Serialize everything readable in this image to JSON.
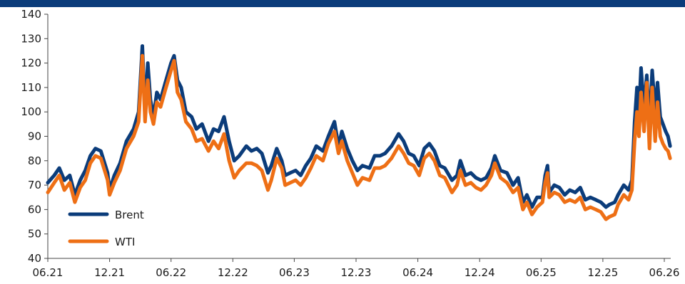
{
  "header": {
    "bar_color": "#0b3c7a"
  },
  "chart_data": {
    "type": "line",
    "title": "",
    "xlabel": "",
    "ylabel": "",
    "ylim": [
      40,
      140
    ],
    "yticks": [
      40,
      50,
      60,
      70,
      80,
      90,
      100,
      110,
      120,
      130,
      140
    ],
    "xlim": [
      "2021-06-01",
      "2026-06-20"
    ],
    "xticks": [
      {
        "label": "06.21",
        "date": "2021-06-01"
      },
      {
        "label": "12.21",
        "date": "2021-12-01"
      },
      {
        "label": "06.22",
        "date": "2022-06-01"
      },
      {
        "label": "12.22",
        "date": "2022-12-01"
      },
      {
        "label": "06.23",
        "date": "2023-06-01"
      },
      {
        "label": "12.23",
        "date": "2023-12-01"
      },
      {
        "label": "06.24",
        "date": "2024-06-01"
      },
      {
        "label": "12.24",
        "date": "2024-12-01"
      },
      {
        "label": "06.25",
        "date": "2025-06-01"
      },
      {
        "label": "12.25",
        "date": "2025-12-01"
      },
      {
        "label": "06.26",
        "date": "2026-06-01"
      }
    ],
    "grid": false,
    "legend_position": "bottom-left",
    "series": [
      {
        "name": "Brent",
        "color": "#0b3c7a",
        "points": [
          [
            "2021-06-01",
            71
          ],
          [
            "2021-06-20",
            74
          ],
          [
            "2021-07-05",
            77
          ],
          [
            "2021-07-20",
            72
          ],
          [
            "2021-08-05",
            74
          ],
          [
            "2021-08-20",
            66
          ],
          [
            "2021-09-05",
            72
          ],
          [
            "2021-09-20",
            76
          ],
          [
            "2021-10-05",
            82
          ],
          [
            "2021-10-20",
            85
          ],
          [
            "2021-11-05",
            84
          ],
          [
            "2021-11-25",
            75
          ],
          [
            "2021-12-01",
            68
          ],
          [
            "2021-12-15",
            74
          ],
          [
            "2022-01-01",
            79
          ],
          [
            "2022-01-20",
            88
          ],
          [
            "2022-02-10",
            93
          ],
          [
            "2022-02-25",
            100
          ],
          [
            "2022-03-08",
            127
          ],
          [
            "2022-03-16",
            99
          ],
          [
            "2022-03-24",
            120
          ],
          [
            "2022-04-01",
            105
          ],
          [
            "2022-04-10",
            98
          ],
          [
            "2022-04-20",
            108
          ],
          [
            "2022-05-01",
            105
          ],
          [
            "2022-05-15",
            112
          ],
          [
            "2022-06-01",
            120
          ],
          [
            "2022-06-10",
            123
          ],
          [
            "2022-06-20",
            113
          ],
          [
            "2022-07-01",
            110
          ],
          [
            "2022-07-15",
            100
          ],
          [
            "2022-08-01",
            98
          ],
          [
            "2022-08-15",
            93
          ],
          [
            "2022-09-01",
            95
          ],
          [
            "2022-09-20",
            88
          ],
          [
            "2022-10-05",
            93
          ],
          [
            "2022-10-20",
            92
          ],
          [
            "2022-11-05",
            98
          ],
          [
            "2022-11-20",
            88
          ],
          [
            "2022-12-05",
            80
          ],
          [
            "2022-12-20",
            82
          ],
          [
            "2023-01-10",
            86
          ],
          [
            "2023-01-25",
            84
          ],
          [
            "2023-02-10",
            85
          ],
          [
            "2023-02-25",
            83
          ],
          [
            "2023-03-15",
            75
          ],
          [
            "2023-03-25",
            78
          ],
          [
            "2023-04-10",
            85
          ],
          [
            "2023-04-25",
            80
          ],
          [
            "2023-05-05",
            74
          ],
          [
            "2023-05-20",
            75
          ],
          [
            "2023-06-05",
            76
          ],
          [
            "2023-06-20",
            74
          ],
          [
            "2023-07-05",
            78
          ],
          [
            "2023-07-20",
            81
          ],
          [
            "2023-08-05",
            86
          ],
          [
            "2023-08-25",
            84
          ],
          [
            "2023-09-10",
            90
          ],
          [
            "2023-09-28",
            96
          ],
          [
            "2023-10-10",
            86
          ],
          [
            "2023-10-20",
            92
          ],
          [
            "2023-11-05",
            85
          ],
          [
            "2023-11-20",
            80
          ],
          [
            "2023-12-05",
            76
          ],
          [
            "2023-12-20",
            78
          ],
          [
            "2024-01-10",
            77
          ],
          [
            "2024-01-25",
            82
          ],
          [
            "2024-02-10",
            82
          ],
          [
            "2024-02-25",
            83
          ],
          [
            "2024-03-15",
            86
          ],
          [
            "2024-04-05",
            91
          ],
          [
            "2024-04-20",
            88
          ],
          [
            "2024-05-05",
            83
          ],
          [
            "2024-05-20",
            82
          ],
          [
            "2024-06-05",
            78
          ],
          [
            "2024-06-20",
            85
          ],
          [
            "2024-07-05",
            87
          ],
          [
            "2024-07-20",
            84
          ],
          [
            "2024-08-05",
            78
          ],
          [
            "2024-08-20",
            77
          ],
          [
            "2024-09-10",
            72
          ],
          [
            "2024-09-25",
            74
          ],
          [
            "2024-10-05",
            80
          ],
          [
            "2024-10-20",
            74
          ],
          [
            "2024-11-05",
            75
          ],
          [
            "2024-11-20",
            73
          ],
          [
            "2024-12-05",
            72
          ],
          [
            "2024-12-20",
            73
          ],
          [
            "2025-01-05",
            77
          ],
          [
            "2025-01-15",
            82
          ],
          [
            "2025-02-01",
            76
          ],
          [
            "2025-02-20",
            75
          ],
          [
            "2025-03-10",
            70
          ],
          [
            "2025-03-25",
            73
          ],
          [
            "2025-04-08",
            63
          ],
          [
            "2025-04-20",
            66
          ],
          [
            "2025-05-05",
            61
          ],
          [
            "2025-05-20",
            65
          ],
          [
            "2025-06-05",
            65
          ],
          [
            "2025-06-13",
            74
          ],
          [
            "2025-06-20",
            78
          ],
          [
            "2025-06-25",
            67
          ],
          [
            "2025-07-10",
            70
          ],
          [
            "2025-07-25",
            69
          ],
          [
            "2025-08-10",
            66
          ],
          [
            "2025-08-25",
            68
          ],
          [
            "2025-09-10",
            67
          ],
          [
            "2025-09-25",
            69
          ],
          [
            "2025-10-10",
            64
          ],
          [
            "2025-10-25",
            65
          ],
          [
            "2025-11-10",
            64
          ],
          [
            "2025-11-25",
            63
          ],
          [
            "2025-12-10",
            61
          ],
          [
            "2025-12-20",
            62
          ],
          [
            "2026-01-05",
            63
          ],
          [
            "2026-01-15",
            66
          ],
          [
            "2026-02-01",
            70
          ],
          [
            "2026-02-15",
            68
          ],
          [
            "2026-02-25",
            72
          ],
          [
            "2026-03-05",
            96
          ],
          [
            "2026-03-12",
            110
          ],
          [
            "2026-03-18",
            100
          ],
          [
            "2026-03-24",
            118
          ],
          [
            "2026-04-02",
            101
          ],
          [
            "2026-04-10",
            115
          ],
          [
            "2026-04-18",
            94
          ],
          [
            "2026-04-26",
            117
          ],
          [
            "2026-05-05",
            100
          ],
          [
            "2026-05-12",
            112
          ],
          [
            "2026-05-20",
            98
          ],
          [
            "2026-05-28",
            95
          ],
          [
            "2026-06-05",
            92
          ],
          [
            "2026-06-12",
            90
          ],
          [
            "2026-06-18",
            86
          ]
        ]
      },
      {
        "name": "WTI",
        "color": "#ee6f15",
        "points": [
          [
            "2021-06-01",
            67
          ],
          [
            "2021-06-20",
            71
          ],
          [
            "2021-07-05",
            74
          ],
          [
            "2021-07-20",
            68
          ],
          [
            "2021-08-05",
            71
          ],
          [
            "2021-08-20",
            63
          ],
          [
            "2021-09-05",
            69
          ],
          [
            "2021-09-20",
            72
          ],
          [
            "2021-10-05",
            79
          ],
          [
            "2021-10-20",
            82
          ],
          [
            "2021-11-05",
            81
          ],
          [
            "2021-11-25",
            72
          ],
          [
            "2021-12-01",
            66
          ],
          [
            "2021-12-15",
            71
          ],
          [
            "2022-01-01",
            76
          ],
          [
            "2022-01-20",
            85
          ],
          [
            "2022-02-10",
            90
          ],
          [
            "2022-02-25",
            96
          ],
          [
            "2022-03-08",
            123
          ],
          [
            "2022-03-16",
            96
          ],
          [
            "2022-03-24",
            113
          ],
          [
            "2022-04-01",
            100
          ],
          [
            "2022-04-10",
            95
          ],
          [
            "2022-04-20",
            104
          ],
          [
            "2022-05-01",
            102
          ],
          [
            "2022-05-15",
            109
          ],
          [
            "2022-06-01",
            117
          ],
          [
            "2022-06-10",
            121
          ],
          [
            "2022-06-20",
            108
          ],
          [
            "2022-07-01",
            105
          ],
          [
            "2022-07-15",
            96
          ],
          [
            "2022-08-01",
            93
          ],
          [
            "2022-08-15",
            88
          ],
          [
            "2022-09-01",
            89
          ],
          [
            "2022-09-20",
            84
          ],
          [
            "2022-10-05",
            88
          ],
          [
            "2022-10-20",
            85
          ],
          [
            "2022-11-05",
            91
          ],
          [
            "2022-11-20",
            80
          ],
          [
            "2022-12-05",
            73
          ],
          [
            "2022-12-20",
            76
          ],
          [
            "2023-01-10",
            79
          ],
          [
            "2023-01-25",
            79
          ],
          [
            "2023-02-10",
            78
          ],
          [
            "2023-02-25",
            76
          ],
          [
            "2023-03-15",
            68
          ],
          [
            "2023-03-25",
            72
          ],
          [
            "2023-04-10",
            81
          ],
          [
            "2023-04-25",
            77
          ],
          [
            "2023-05-05",
            70
          ],
          [
            "2023-05-20",
            71
          ],
          [
            "2023-06-05",
            72
          ],
          [
            "2023-06-20",
            70
          ],
          [
            "2023-07-05",
            73
          ],
          [
            "2023-07-20",
            77
          ],
          [
            "2023-08-05",
            82
          ],
          [
            "2023-08-25",
            80
          ],
          [
            "2023-09-10",
            87
          ],
          [
            "2023-09-28",
            92
          ],
          [
            "2023-10-10",
            83
          ],
          [
            "2023-10-20",
            88
          ],
          [
            "2023-11-05",
            80
          ],
          [
            "2023-11-20",
            75
          ],
          [
            "2023-12-05",
            70
          ],
          [
            "2023-12-20",
            73
          ],
          [
            "2024-01-10",
            72
          ],
          [
            "2024-01-25",
            77
          ],
          [
            "2024-02-10",
            77
          ],
          [
            "2024-02-25",
            78
          ],
          [
            "2024-03-15",
            81
          ],
          [
            "2024-04-05",
            86
          ],
          [
            "2024-04-20",
            83
          ],
          [
            "2024-05-05",
            79
          ],
          [
            "2024-05-20",
            78
          ],
          [
            "2024-06-05",
            74
          ],
          [
            "2024-06-20",
            81
          ],
          [
            "2024-07-05",
            83
          ],
          [
            "2024-07-20",
            80
          ],
          [
            "2024-08-05",
            74
          ],
          [
            "2024-08-20",
            73
          ],
          [
            "2024-09-10",
            67
          ],
          [
            "2024-09-25",
            70
          ],
          [
            "2024-10-05",
            76
          ],
          [
            "2024-10-20",
            70
          ],
          [
            "2024-11-05",
            71
          ],
          [
            "2024-11-20",
            69
          ],
          [
            "2024-12-05",
            68
          ],
          [
            "2024-12-20",
            70
          ],
          [
            "2025-01-05",
            74
          ],
          [
            "2025-01-15",
            79
          ],
          [
            "2025-02-01",
            73
          ],
          [
            "2025-02-20",
            71
          ],
          [
            "2025-03-10",
            67
          ],
          [
            "2025-03-25",
            69
          ],
          [
            "2025-04-08",
            60
          ],
          [
            "2025-04-20",
            63
          ],
          [
            "2025-05-05",
            58
          ],
          [
            "2025-05-20",
            61
          ],
          [
            "2025-06-05",
            63
          ],
          [
            "2025-06-13",
            71
          ],
          [
            "2025-06-20",
            75
          ],
          [
            "2025-06-25",
            65
          ],
          [
            "2025-07-10",
            67
          ],
          [
            "2025-07-25",
            66
          ],
          [
            "2025-08-10",
            63
          ],
          [
            "2025-08-25",
            64
          ],
          [
            "2025-09-10",
            63
          ],
          [
            "2025-09-25",
            65
          ],
          [
            "2025-10-10",
            60
          ],
          [
            "2025-10-25",
            61
          ],
          [
            "2025-11-10",
            60
          ],
          [
            "2025-11-25",
            59
          ],
          [
            "2025-12-10",
            56
          ],
          [
            "2025-12-20",
            57
          ],
          [
            "2026-01-05",
            58
          ],
          [
            "2026-01-15",
            62
          ],
          [
            "2026-02-01",
            66
          ],
          [
            "2026-02-15",
            64
          ],
          [
            "2026-02-25",
            68
          ],
          [
            "2026-03-05",
            88
          ],
          [
            "2026-03-12",
            100
          ],
          [
            "2026-03-18",
            90
          ],
          [
            "2026-03-24",
            108
          ],
          [
            "2026-04-02",
            92
          ],
          [
            "2026-04-10",
            112
          ],
          [
            "2026-04-18",
            85
          ],
          [
            "2026-04-26",
            110
          ],
          [
            "2026-05-05",
            88
          ],
          [
            "2026-05-12",
            104
          ],
          [
            "2026-05-20",
            90
          ],
          [
            "2026-05-28",
            87
          ],
          [
            "2026-06-05",
            85
          ],
          [
            "2026-06-12",
            84
          ],
          [
            "2026-06-18",
            81
          ]
        ]
      }
    ]
  }
}
